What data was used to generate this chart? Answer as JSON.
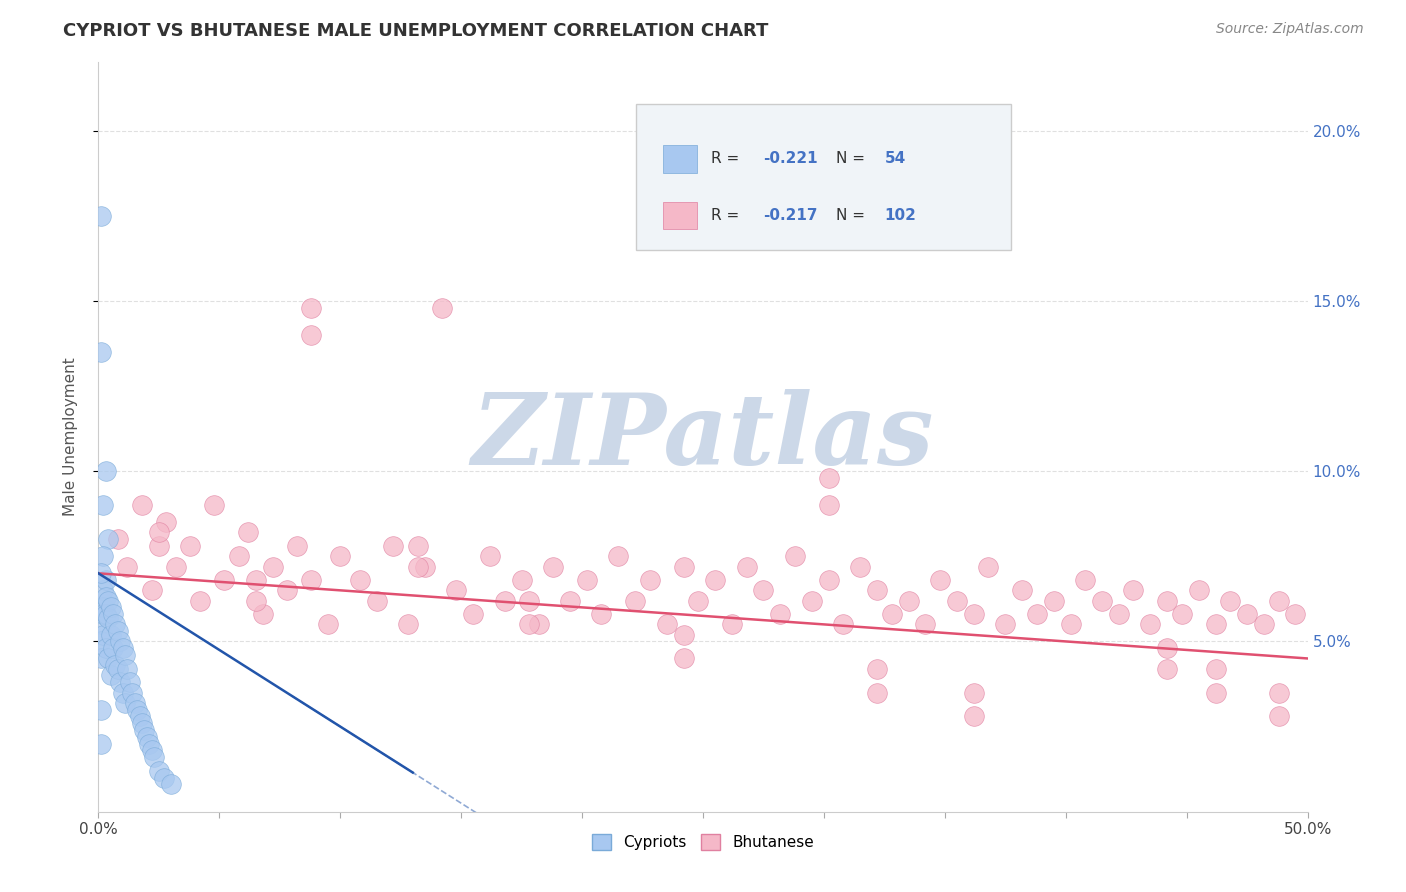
{
  "title": "CYPRIOT VS BHUTANESE MALE UNEMPLOYMENT CORRELATION CHART",
  "source": "Source: ZipAtlas.com",
  "ylabel": "Male Unemployment",
  "cypriot_color": "#a8c8f0",
  "cypriot_edge_color": "#7aaad8",
  "bhutanese_color": "#f5b8c8",
  "bhutanese_edge_color": "#e080a0",
  "cypriot_line_color": "#2255aa",
  "bhutanese_line_color": "#e05070",
  "watermark_color": "#ccd8e8",
  "xlim": [
    0.0,
    0.5
  ],
  "ylim": [
    0.0,
    0.22
  ],
  "legend_box_color": "#f0f4f8",
  "legend_border_color": "#cccccc",
  "grid_color": "#cccccc",
  "title_color": "#333333",
  "source_color": "#888888",
  "axis_label_color": "#555555",
  "right_tick_color": "#4472c4",
  "cypriot_x": [
    0.001,
    0.001,
    0.001,
    0.001,
    0.001,
    0.002,
    0.002,
    0.002,
    0.002,
    0.003,
    0.003,
    0.003,
    0.003,
    0.004,
    0.004,
    0.004,
    0.005,
    0.005,
    0.005,
    0.006,
    0.006,
    0.007,
    0.007,
    0.008,
    0.008,
    0.009,
    0.009,
    0.01,
    0.01,
    0.011,
    0.011,
    0.012,
    0.013,
    0.014,
    0.015,
    0.016,
    0.017,
    0.018,
    0.019,
    0.02,
    0.021,
    0.022,
    0.023,
    0.025,
    0.027,
    0.03,
    0.001,
    0.002,
    0.003,
    0.004,
    0.002,
    0.001,
    0.001,
    0.001
  ],
  "cypriot_y": [
    0.175,
    0.06,
    0.055,
    0.05,
    0.045,
    0.065,
    0.06,
    0.058,
    0.052,
    0.068,
    0.063,
    0.058,
    0.048,
    0.062,
    0.057,
    0.045,
    0.06,
    0.052,
    0.04,
    0.058,
    0.048,
    0.055,
    0.043,
    0.053,
    0.042,
    0.05,
    0.038,
    0.048,
    0.035,
    0.046,
    0.032,
    0.042,
    0.038,
    0.035,
    0.032,
    0.03,
    0.028,
    0.026,
    0.024,
    0.022,
    0.02,
    0.018,
    0.016,
    0.012,
    0.01,
    0.008,
    0.135,
    0.09,
    0.1,
    0.08,
    0.075,
    0.07,
    0.03,
    0.02
  ],
  "bhutanese_x": [
    0.008,
    0.012,
    0.018,
    0.022,
    0.028,
    0.032,
    0.038,
    0.042,
    0.048,
    0.052,
    0.058,
    0.062,
    0.068,
    0.072,
    0.078,
    0.082,
    0.088,
    0.095,
    0.1,
    0.108,
    0.115,
    0.122,
    0.128,
    0.135,
    0.142,
    0.148,
    0.155,
    0.162,
    0.168,
    0.175,
    0.182,
    0.188,
    0.195,
    0.202,
    0.208,
    0.215,
    0.222,
    0.228,
    0.235,
    0.242,
    0.248,
    0.255,
    0.262,
    0.268,
    0.275,
    0.282,
    0.288,
    0.295,
    0.302,
    0.308,
    0.315,
    0.322,
    0.328,
    0.335,
    0.342,
    0.348,
    0.355,
    0.362,
    0.368,
    0.375,
    0.382,
    0.388,
    0.395,
    0.402,
    0.408,
    0.415,
    0.422,
    0.428,
    0.435,
    0.442,
    0.448,
    0.455,
    0.462,
    0.468,
    0.475,
    0.482,
    0.488,
    0.495,
    0.088,
    0.088,
    0.302,
    0.302,
    0.025,
    0.025,
    0.065,
    0.065,
    0.132,
    0.132,
    0.178,
    0.178,
    0.242,
    0.242,
    0.322,
    0.322,
    0.362,
    0.362,
    0.442,
    0.442,
    0.462,
    0.462,
    0.488,
    0.488
  ],
  "bhutanese_y": [
    0.08,
    0.072,
    0.09,
    0.065,
    0.085,
    0.072,
    0.078,
    0.062,
    0.09,
    0.068,
    0.075,
    0.082,
    0.058,
    0.072,
    0.065,
    0.078,
    0.068,
    0.055,
    0.075,
    0.068,
    0.062,
    0.078,
    0.055,
    0.072,
    0.148,
    0.065,
    0.058,
    0.075,
    0.062,
    0.068,
    0.055,
    0.072,
    0.062,
    0.068,
    0.058,
    0.075,
    0.062,
    0.068,
    0.055,
    0.072,
    0.062,
    0.068,
    0.055,
    0.072,
    0.065,
    0.058,
    0.075,
    0.062,
    0.068,
    0.055,
    0.072,
    0.065,
    0.058,
    0.062,
    0.055,
    0.068,
    0.062,
    0.058,
    0.072,
    0.055,
    0.065,
    0.058,
    0.062,
    0.055,
    0.068,
    0.062,
    0.058,
    0.065,
    0.055,
    0.062,
    0.058,
    0.065,
    0.055,
    0.062,
    0.058,
    0.055,
    0.062,
    0.058,
    0.14,
    0.148,
    0.09,
    0.098,
    0.078,
    0.082,
    0.062,
    0.068,
    0.072,
    0.078,
    0.055,
    0.062,
    0.045,
    0.052,
    0.035,
    0.042,
    0.028,
    0.035,
    0.042,
    0.048,
    0.035,
    0.042,
    0.028,
    0.035
  ]
}
